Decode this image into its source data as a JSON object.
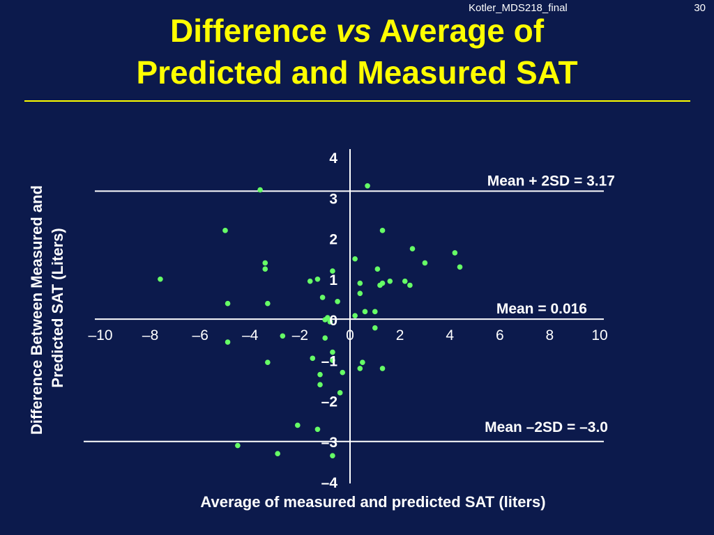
{
  "header": {
    "source": "Kotler_MDS218_final",
    "page_number": "30"
  },
  "title": {
    "part1": "Difference ",
    "vs": "vs",
    "part2": " Average of",
    "line2": "Predicted and Measured SAT"
  },
  "colors": {
    "background": "#0c1a4c",
    "title": "#ffff00",
    "points": "#66ff66",
    "lines": "#ffffff"
  },
  "chart_data": {
    "type": "scatter",
    "xlabel": "Average of measured and predicted SAT (liters)",
    "ylabel_lines": [
      "Difference Between Measured and",
      "Predicted SAT (Liters)"
    ],
    "xlim": [
      -10,
      10
    ],
    "ylim": [
      -4,
      4
    ],
    "xticks": [
      -10,
      -8,
      -6,
      -4,
      -2,
      0,
      2,
      4,
      6,
      8,
      10
    ],
    "xtick_labels": [
      "–10",
      "–8",
      "–6",
      "–4",
      "–2",
      "0",
      "2",
      "4",
      "6",
      "8",
      "10"
    ],
    "yticks": [
      4,
      3,
      2,
      1,
      0,
      -1,
      -2,
      -3,
      -4
    ],
    "ytick_labels": [
      "4",
      "3",
      "2",
      "1",
      "0",
      "–1",
      "–2",
      "–3",
      "–4"
    ],
    "reference_lines": [
      {
        "y": 3.17,
        "label": "Mean + 2SD = 3.17"
      },
      {
        "y": 0.016,
        "label": "Mean = 0.016"
      },
      {
        "y": -3.0,
        "label": "Mean –2SD = –3.0"
      }
    ],
    "points": [
      [
        -7.6,
        1.0
      ],
      [
        -5.0,
        2.2
      ],
      [
        -4.9,
        0.4
      ],
      [
        -4.9,
        -0.55
      ],
      [
        -4.5,
        -3.1
      ],
      [
        -3.6,
        3.2
      ],
      [
        -3.4,
        1.4
      ],
      [
        -3.4,
        1.25
      ],
      [
        -3.3,
        0.4
      ],
      [
        -3.3,
        -1.05
      ],
      [
        -2.9,
        -3.3
      ],
      [
        -2.7,
        -0.4
      ],
      [
        -2.1,
        -2.6
      ],
      [
        -1.6,
        0.95
      ],
      [
        -1.5,
        -0.95
      ],
      [
        -1.3,
        1.0
      ],
      [
        -1.3,
        -2.7
      ],
      [
        -1.2,
        -1.35
      ],
      [
        -1.2,
        -1.6
      ],
      [
        -1.1,
        0.55
      ],
      [
        -1.0,
        -0.45
      ],
      [
        -1.0,
        0.0
      ],
      [
        -0.9,
        0.05
      ],
      [
        -0.8,
        -0.05
      ],
      [
        -0.7,
        -0.8
      ],
      [
        -0.7,
        -1.0
      ],
      [
        -0.7,
        -3.35
      ],
      [
        -0.7,
        1.2
      ],
      [
        -0.5,
        0.45
      ],
      [
        -0.4,
        -1.8
      ],
      [
        -0.3,
        -1.3
      ],
      [
        0.2,
        1.5
      ],
      [
        0.2,
        0.1
      ],
      [
        0.4,
        0.65
      ],
      [
        0.4,
        -1.2
      ],
      [
        0.4,
        0.9
      ],
      [
        0.5,
        -1.05
      ],
      [
        0.6,
        0.2
      ],
      [
        0.7,
        3.3
      ],
      [
        1.0,
        0.2
      ],
      [
        1.0,
        -0.2
      ],
      [
        1.1,
        1.25
      ],
      [
        1.2,
        0.85
      ],
      [
        1.3,
        2.2
      ],
      [
        1.3,
        -1.2
      ],
      [
        1.3,
        0.9
      ],
      [
        1.6,
        0.95
      ],
      [
        2.2,
        0.95
      ],
      [
        2.4,
        0.85
      ],
      [
        2.5,
        1.75
      ],
      [
        3.0,
        1.4
      ],
      [
        4.2,
        1.65
      ],
      [
        4.4,
        1.3
      ]
    ]
  }
}
